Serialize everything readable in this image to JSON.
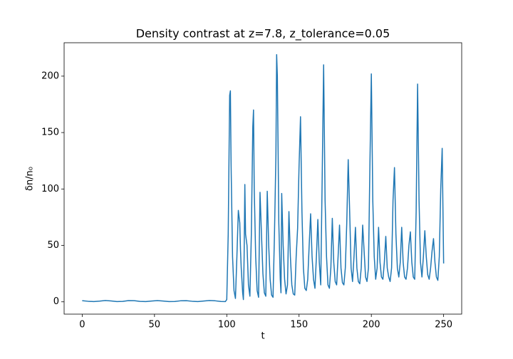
{
  "chart_data": {
    "type": "line",
    "title": "Density contrast at z=7.8, z_tolerance=0.05",
    "xlabel": "t",
    "ylabel": "δn/n₀",
    "xlim": [
      -12.5,
      262.5
    ],
    "ylim": [
      -10.9,
      229.6
    ],
    "xticks": [
      0,
      50,
      100,
      150,
      200,
      250
    ],
    "yticks": [
      0,
      50,
      100,
      150,
      200
    ],
    "series": [
      {
        "color": "#1f77b4",
        "x": [
          0,
          4,
          8,
          12,
          16,
          20,
          24,
          28,
          32,
          36,
          40,
          44,
          48,
          52,
          56,
          60,
          64,
          68,
          72,
          76,
          80,
          84,
          88,
          92,
          96,
          99,
          100,
          101,
          102,
          102.5,
          103,
          104,
          105,
          106,
          107,
          108,
          109,
          109.5,
          110,
          111,
          111.5,
          112,
          112.5,
          113,
          114,
          115,
          116,
          117,
          118,
          118.5,
          119,
          120,
          121,
          122,
          123,
          124,
          125,
          126,
          127,
          128,
          129,
          130,
          131,
          132,
          133,
          134,
          134.5,
          135,
          136,
          137,
          137.5,
          138,
          139,
          140,
          141,
          142,
          143,
          144,
          145,
          146,
          147,
          148,
          149,
          150,
          151,
          152,
          153,
          154,
          155,
          156,
          157,
          158,
          159,
          160,
          161,
          162,
          163,
          164,
          165,
          166,
          167,
          168,
          169,
          170,
          171,
          172,
          173,
          174,
          175,
          176,
          177,
          178,
          179,
          180,
          181,
          182,
          183,
          184,
          185,
          186,
          187,
          188,
          189,
          190,
          191,
          192,
          193,
          194,
          195,
          196,
          197,
          198,
          199,
          200,
          201,
          202,
          203,
          204,
          205,
          206,
          207,
          208,
          209,
          210,
          211,
          212,
          213,
          214,
          215,
          216,
          217,
          218,
          219,
          220,
          221,
          222,
          223,
          224,
          225,
          226,
          227,
          228,
          229,
          230,
          231,
          232,
          233,
          234,
          235,
          236,
          237,
          238,
          239,
          240,
          241,
          242,
          243,
          244,
          245,
          246,
          247,
          248,
          249,
          250
        ],
        "values": [
          1,
          0.5,
          0.2,
          0.6,
          1.2,
          0.8,
          0.2,
          0.4,
          1.1,
          1.0,
          0.4,
          0.2,
          0.7,
          1.1,
          0.7,
          0.2,
          0.3,
          0.9,
          1.0,
          0.5,
          0.2,
          0.7,
          1.2,
          0.9,
          0.3,
          0.2,
          2,
          60,
          183,
          187,
          120,
          40,
          10,
          3,
          40,
          81,
          70,
          46,
          30,
          8,
          2,
          40,
          104,
          60,
          50,
          15,
          5,
          60,
          155,
          170,
          100,
          40,
          10,
          4,
          97,
          60,
          25,
          8,
          5,
          98,
          50,
          20,
          6,
          4,
          60,
          130,
          219,
          200,
          70,
          20,
          8,
          96,
          50,
          20,
          7,
          15,
          80,
          40,
          15,
          7,
          6,
          40,
          65,
          120,
          164,
          80,
          30,
          12,
          10,
          20,
          50,
          78,
          40,
          20,
          12,
          40,
          73,
          35,
          15,
          110,
          210,
          90,
          40,
          15,
          12,
          30,
          74,
          35,
          18,
          15,
          40,
          68,
          30,
          17,
          15,
          30,
          70,
          126,
          80,
          30,
          18,
          40,
          66,
          30,
          18,
          16,
          30,
          68,
          45,
          22,
          18,
          30,
          120,
          202,
          90,
          40,
          20,
          30,
          66,
          35,
          22,
          20,
          35,
          58,
          30,
          22,
          18,
          30,
          90,
          119,
          60,
          30,
          22,
          35,
          66,
          35,
          22,
          20,
          30,
          50,
          62,
          35,
          22,
          20,
          80,
          193,
          90,
          35,
          22,
          40,
          63,
          40,
          24,
          20,
          30,
          45,
          56,
          35,
          22,
          19,
          40,
          100,
          136,
          34
        ]
      }
    ]
  }
}
